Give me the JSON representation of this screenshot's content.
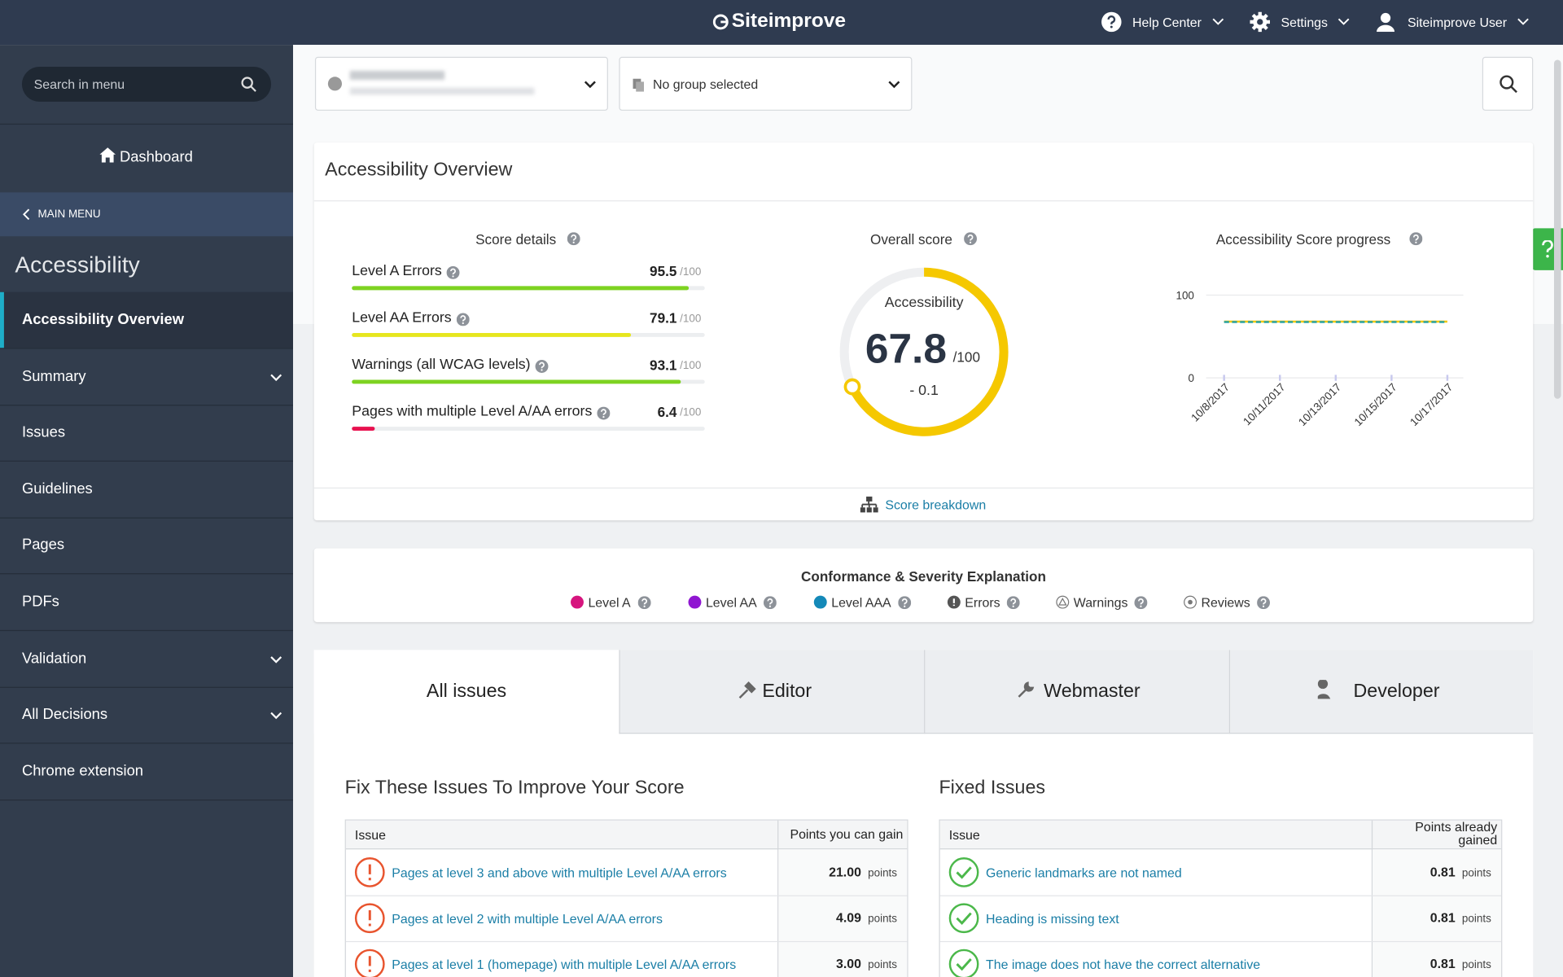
{
  "header": {
    "brand": "Siteimprove",
    "help": "Help Center",
    "settings": "Settings",
    "user": "Siteimprove User"
  },
  "sidebar": {
    "search_placeholder": "Search in menu",
    "dashboard": "Dashboard",
    "main_menu": "MAIN MENU",
    "section": "Accessibility",
    "items": [
      {
        "label": "Accessibility Overview",
        "active": true,
        "expandable": false
      },
      {
        "label": "Summary",
        "active": false,
        "expandable": true
      },
      {
        "label": "Issues",
        "active": false,
        "expandable": false
      },
      {
        "label": "Guidelines",
        "active": false,
        "expandable": false
      },
      {
        "label": "Pages",
        "active": false,
        "expandable": false
      },
      {
        "label": "PDFs",
        "active": false,
        "expandable": false
      },
      {
        "label": "Validation",
        "active": false,
        "expandable": true
      },
      {
        "label": "All Decisions",
        "active": false,
        "expandable": true
      },
      {
        "label": "Chrome extension",
        "active": false,
        "expandable": false
      }
    ]
  },
  "filters": {
    "group": "No group selected"
  },
  "overview": {
    "title": "Accessibility Overview",
    "score_details": {
      "title": "Score details",
      "max": 100,
      "max_label": "/100",
      "rows": [
        {
          "label": "Level A Errors",
          "value": 95.5,
          "color": "#7ed321"
        },
        {
          "label": "Level AA Errors",
          "value": 79.1,
          "color": "#e6e61e"
        },
        {
          "label": "Warnings (all WCAG levels)",
          "value": 93.1,
          "color": "#7ed321"
        },
        {
          "label": "Pages with multiple Level A/AA errors",
          "value": 6.4,
          "color": "#e8114f"
        }
      ]
    },
    "overall": {
      "title": "Overall score",
      "label": "Accessibility",
      "value": 67.8,
      "max": 100,
      "max_label": "/100",
      "change": "- 0.1",
      "color": "#f5c800"
    },
    "progress": {
      "type": "line",
      "title": "Accessibility Score progress",
      "categories": [
        "10/8/2017",
        "10/11/2017",
        "10/13/2017",
        "10/15/2017",
        "10/17/2017"
      ],
      "series": [
        {
          "color": "#f5c800",
          "dashed": false,
          "values": [
            68,
            68,
            68,
            68,
            68
          ]
        },
        {
          "color": "#2aa3a3",
          "dashed": true,
          "values": [
            67.5,
            67.5,
            67.5,
            67.5,
            67.5
          ]
        }
      ],
      "ylim": [
        0,
        100
      ],
      "yticks": [
        0,
        100
      ],
      "grid": true
    },
    "breakdown": "Score breakdown"
  },
  "conformance": {
    "title": "Conformance & Severity Explanation",
    "legend": [
      {
        "label": "Level A",
        "color": "#d6157e",
        "icon": "dot"
      },
      {
        "label": "Level AA",
        "color": "#8f16d1",
        "icon": "dot"
      },
      {
        "label": "Level AAA",
        "color": "#1489b8",
        "icon": "dot"
      },
      {
        "label": "Errors",
        "color": "#555555",
        "icon": "error"
      },
      {
        "label": "Warnings",
        "color": "#777777",
        "icon": "warning"
      },
      {
        "label": "Reviews",
        "color": "#777777",
        "icon": "review"
      }
    ]
  },
  "tabs": [
    "All issues",
    "Editor",
    "Webmaster",
    "Developer"
  ],
  "fix_issues": {
    "title": "Fix These Issues To Improve Your Score",
    "columns": [
      "Issue",
      "Points you can gain"
    ],
    "unit": "points",
    "rows": [
      {
        "issue": "Pages at level 3 and above with multiple Level A/AA errors",
        "points": "21.00"
      },
      {
        "issue": "Pages at level 2 with multiple Level A/AA errors",
        "points": "4.09"
      },
      {
        "issue": "Pages at level 1 (homepage) with multiple Level A/AA errors",
        "points": "3.00"
      }
    ]
  },
  "fixed_issues": {
    "title": "Fixed Issues",
    "columns": [
      "Issue",
      "Points already gained"
    ],
    "unit": "points",
    "rows": [
      {
        "issue": "Generic landmarks are not named",
        "points": "0.81"
      },
      {
        "issue": "Heading is missing text",
        "points": "0.81"
      },
      {
        "issue": "The image does not have the correct alternative",
        "points": "0.81"
      }
    ]
  }
}
